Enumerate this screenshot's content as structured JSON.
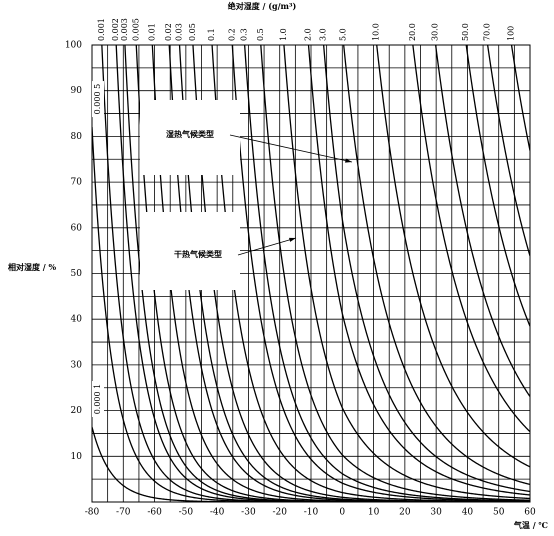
{
  "chart_data": {
    "type": "isopleth",
    "title": "绝对湿度 / (g/m³)",
    "x_label": "气温 / ℃",
    "y_label": "相对湿度 / %",
    "xlim": [
      -80,
      60
    ],
    "ylim": [
      0,
      100
    ],
    "xticks": [
      -80,
      -70,
      -60,
      -50,
      -40,
      -30,
      -20,
      -10,
      0,
      10,
      20,
      30,
      40,
      50,
      60
    ],
    "yticks": [
      10,
      20,
      30,
      40,
      50,
      60,
      70,
      80,
      90,
      100
    ],
    "grid": true,
    "color": "#000000",
    "curves": [
      {
        "value": 0.0001,
        "label": "0.000 1"
      },
      {
        "value": 0.0005,
        "label": "0.000 5"
      },
      {
        "value": 0.001,
        "label": "0.001"
      },
      {
        "value": 0.002,
        "label": "0.002"
      },
      {
        "value": 0.003,
        "label": "0.003"
      },
      {
        "value": 0.005,
        "label": "0.005"
      },
      {
        "value": 0.01,
        "label": "0.01"
      },
      {
        "value": 0.02,
        "label": "0.02"
      },
      {
        "value": 0.03,
        "label": "0.03"
      },
      {
        "value": 0.05,
        "label": "0.05"
      },
      {
        "value": 0.1,
        "label": "0.1"
      },
      {
        "value": 0.2,
        "label": "0.2"
      },
      {
        "value": 0.3,
        "label": "0.3"
      },
      {
        "value": 0.5,
        "label": "0.5"
      },
      {
        "value": 1,
        "label": "1.0"
      },
      {
        "value": 2,
        "label": "2.0"
      },
      {
        "value": 3,
        "label": "3.0"
      },
      {
        "value": 5,
        "label": "5.0"
      },
      {
        "value": 10,
        "label": "10.0"
      },
      {
        "value": 20,
        "label": "20.0"
      },
      {
        "value": 30,
        "label": "30.0"
      },
      {
        "value": 50,
        "label": "50.0"
      },
      {
        "value": 70,
        "label": "70.0"
      },
      {
        "value": 100,
        "label": "100"
      }
    ],
    "annotations": [
      "湿热气候类型",
      "干热气候类型"
    ]
  }
}
